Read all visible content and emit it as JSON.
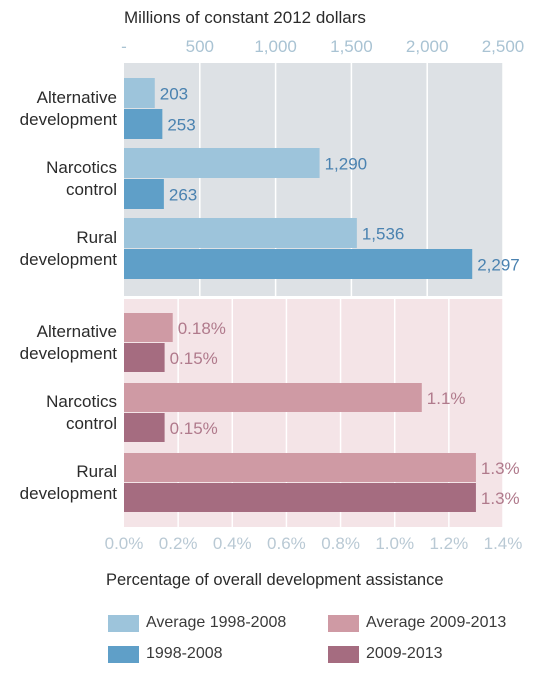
{
  "chart_data": [
    {
      "type": "bar",
      "orientation": "horizontal",
      "panel": "top",
      "axis_title": "Millions of constant 2012 dollars",
      "axis_position": "top",
      "xlim": [
        0,
        2500
      ],
      "ticks": [
        0,
        500,
        1000,
        1500,
        2000,
        2500
      ],
      "tick_labels": [
        "-",
        "500",
        "1,000",
        "1,500",
        "2,000",
        "2,500"
      ],
      "grid": true,
      "background": "#dde1e5",
      "categories": [
        [
          "Alternative",
          "development"
        ],
        [
          "Narcotics",
          "control"
        ],
        [
          "Rural",
          "development"
        ]
      ],
      "series": [
        {
          "name": "Average 1998-2008",
          "color": "#9dc4db",
          "values": [
            203,
            1290,
            1536
          ],
          "labels": [
            "203",
            "1,290",
            "1,536"
          ]
        },
        {
          "name": "1998-2008",
          "color": "#5f9fc8",
          "values": [
            253,
            263,
            2297
          ],
          "labels": [
            "253",
            "263",
            "2,297"
          ]
        }
      ],
      "label_color": "#4a82b0"
    },
    {
      "type": "bar",
      "orientation": "horizontal",
      "panel": "bottom",
      "axis_title": "Percentage of overall development assistance",
      "axis_position": "bottom",
      "xlim": [
        0,
        1.4
      ],
      "ticks": [
        0,
        0.2,
        0.4,
        0.6,
        0.8,
        1.0,
        1.2,
        1.4
      ],
      "tick_labels": [
        "0.0%",
        "0.2%",
        "0.4%",
        "0.6%",
        "0.8%",
        "1.0%",
        "1.2%",
        "1.4%"
      ],
      "grid": true,
      "background": "#f4e4e7",
      "categories": [
        [
          "Alternative",
          "development"
        ],
        [
          "Narcotics",
          "control"
        ],
        [
          "Rural",
          "development"
        ]
      ],
      "series": [
        {
          "name": "Average 2009-2013",
          "color": "#cf9aa4",
          "values": [
            0.18,
            1.1,
            1.3
          ],
          "labels": [
            "0.18%",
            "1.1%",
            "1.3%"
          ]
        },
        {
          "name": "2009-2013",
          "color": "#a56c80",
          "values": [
            0.15,
            0.15,
            1.3
          ],
          "labels": [
            "0.15%",
            "0.15%",
            "1.3%"
          ]
        }
      ],
      "label_color": "#b07a8c"
    }
  ],
  "legend": {
    "placement": "bottom",
    "items": [
      {
        "label": "Average 1998-2008",
        "color": "#9dc4db"
      },
      {
        "label": "Average 2009-2013",
        "color": "#cf9aa4"
      },
      {
        "label": "1998-2008",
        "color": "#5f9fc8"
      },
      {
        "label": "2009-2013",
        "color": "#a56c80"
      }
    ]
  },
  "colors": {
    "tick_top": "#a9c3d3",
    "tick_bottom": "#b9c9d4",
    "category_text": "#2b2b2b",
    "axis_title": "#2b2b2b"
  }
}
